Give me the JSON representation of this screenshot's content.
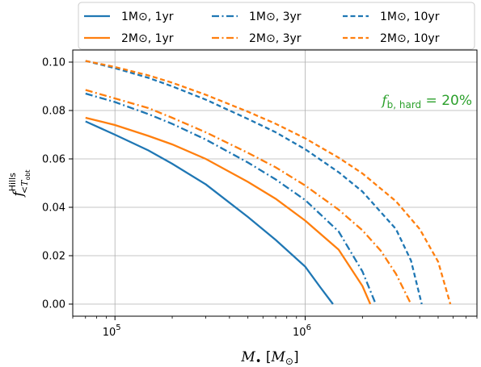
{
  "chart_data": {
    "type": "line",
    "xscale": "log",
    "xlim": [
      60000,
      8000000
    ],
    "ylim": [
      -0.005,
      0.105
    ],
    "xlabel": "M• [M⊙]",
    "ylabel": "f<T_obt Hills",
    "x_ticks": [
      {
        "value": 100000,
        "base": "10",
        "exp": "5"
      },
      {
        "value": 1000000,
        "base": "10",
        "exp": "6"
      }
    ],
    "y_ticks": [
      {
        "value": 0.0,
        "label": "0.00"
      },
      {
        "value": 0.02,
        "label": "0.02"
      },
      {
        "value": 0.04,
        "label": "0.04"
      },
      {
        "value": 0.06,
        "label": "0.06"
      },
      {
        "value": 0.08,
        "label": "0.08"
      },
      {
        "value": 0.1,
        "label": "0.10"
      }
    ],
    "grid": true,
    "legend_position": "top",
    "annotation": {
      "text": "f_b,hard = 20%",
      "color": "#2ca02c"
    },
    "series": [
      {
        "name": "1M⊙, 1yr",
        "color": "#1f77b4",
        "dash": "solid",
        "x": [
          70000,
          100000,
          150000,
          200000,
          300000,
          500000,
          700000,
          1000000,
          1200000,
          1400000
        ],
        "y": [
          0.0755,
          0.07,
          0.0635,
          0.058,
          0.0495,
          0.036,
          0.0265,
          0.0155,
          0.007,
          0.0
        ]
      },
      {
        "name": "2M⊙, 1yr",
        "color": "#ff7f0e",
        "dash": "solid",
        "x": [
          70000,
          100000,
          150000,
          200000,
          300000,
          500000,
          700000,
          1000000,
          1500000,
          2000000,
          2200000
        ],
        "y": [
          0.077,
          0.074,
          0.0695,
          0.066,
          0.06,
          0.0505,
          0.0435,
          0.0345,
          0.0225,
          0.0075,
          0.0
        ]
      },
      {
        "name": "1M⊙, 3yr",
        "color": "#1f77b4",
        "dash": "dashdot",
        "x": [
          70000,
          100000,
          150000,
          200000,
          300000,
          500000,
          700000,
          1000000,
          1500000,
          2000000,
          2350000
        ],
        "y": [
          0.087,
          0.0835,
          0.0785,
          0.0745,
          0.068,
          0.0585,
          0.0515,
          0.043,
          0.03,
          0.0135,
          0.0
        ]
      },
      {
        "name": "2M⊙, 3yr",
        "color": "#ff7f0e",
        "dash": "dashdot",
        "x": [
          70000,
          100000,
          150000,
          200000,
          300000,
          500000,
          700000,
          1000000,
          1500000,
          2000000,
          2500000,
          3000000,
          3600000
        ],
        "y": [
          0.0885,
          0.085,
          0.081,
          0.077,
          0.071,
          0.0625,
          0.0565,
          0.049,
          0.039,
          0.0305,
          0.022,
          0.0125,
          0.0
        ]
      },
      {
        "name": "1M⊙, 10yr",
        "color": "#1f77b4",
        "dash": "dashed",
        "x": [
          70000,
          100000,
          150000,
          200000,
          300000,
          500000,
          700000,
          1000000,
          1500000,
          2000000,
          3000000,
          3600000,
          4100000
        ],
        "y": [
          0.1005,
          0.0975,
          0.0935,
          0.09,
          0.0845,
          0.0765,
          0.071,
          0.064,
          0.0545,
          0.0465,
          0.031,
          0.018,
          0.0
        ]
      },
      {
        "name": "2M⊙, 10yr",
        "color": "#ff7f0e",
        "dash": "dashed",
        "x": [
          70000,
          100000,
          150000,
          200000,
          300000,
          500000,
          700000,
          1000000,
          1500000,
          2000000,
          3000000,
          4000000,
          5000000,
          5800000
        ],
        "y": [
          0.1005,
          0.098,
          0.0945,
          0.0915,
          0.0865,
          0.0795,
          0.0745,
          0.0685,
          0.0605,
          0.054,
          0.0425,
          0.031,
          0.0175,
          0.0
        ]
      }
    ]
  }
}
